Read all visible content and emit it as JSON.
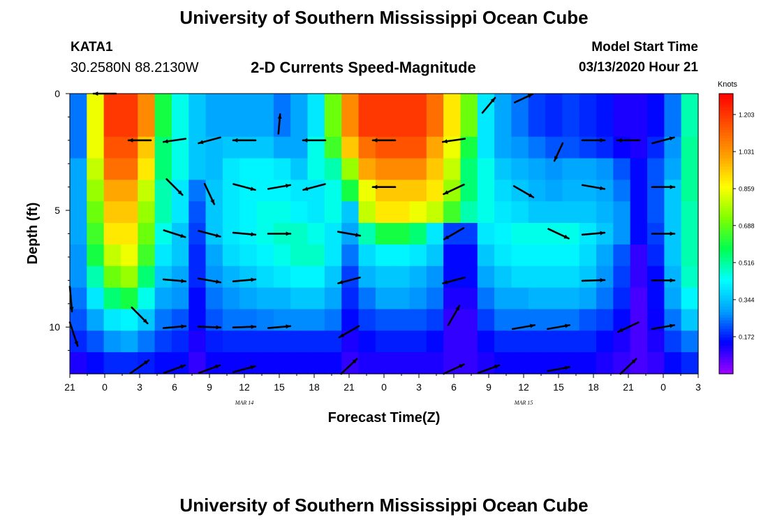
{
  "page": {
    "title": "University of Southern Mississippi Ocean Cube",
    "footer_title": "University of Southern Mississippi Ocean Cube",
    "station": "KATA1",
    "coords": "30.2580N 88.2130W",
    "plot_title": "2-D Currents Speed-Magnitude",
    "model_label": "Model Start Time",
    "model_time": "03/13/2020 Hour 21"
  },
  "chart_data": {
    "type": "heatmap",
    "title": "2-D Currents Speed-Magnitude",
    "xlabel": "Forecast Time(Z)",
    "ylabel": "Depth (ft)",
    "x_hours": [
      0,
      3,
      6,
      9,
      12,
      15,
      18,
      21,
      24,
      27,
      30,
      33,
      36,
      39,
      42,
      45,
      48,
      51,
      54
    ],
    "x_tick_labels": [
      "21",
      "0",
      "3",
      "6",
      "9",
      "12",
      "15",
      "18",
      "21",
      "0",
      "3",
      "6",
      "9",
      "12",
      "15",
      "18",
      "21",
      "0",
      "3"
    ],
    "date_labels": [
      {
        "label": "MAR 14",
        "hour": 15
      },
      {
        "label": "MAR 15",
        "hour": 39
      }
    ],
    "xlim": [
      0,
      54
    ],
    "y_ticks": [
      0,
      5,
      10
    ],
    "ylim": [
      0,
      12
    ],
    "colorbar": {
      "title": "Knots",
      "ticks": [
        1.203,
        1.031,
        0.859,
        0.688,
        0.516,
        0.344,
        0.172
      ],
      "tick_labels": [
        "1.203",
        "1.031",
        "0.859",
        "0.688",
        "0.516",
        "0.344",
        "0.172"
      ],
      "min": 0.0,
      "max": 1.3,
      "colors": [
        "#a000ff",
        "#0000ff",
        "#00a0ff",
        "#00ffff",
        "#00ff50",
        "#80ff00",
        "#ffff00",
        "#ffa000",
        "#ff5000",
        "#ff0000"
      ]
    },
    "speed_knots": [
      [
        0.25,
        0.85,
        1.2,
        1.2,
        1.05,
        0.6,
        0.45,
        0.35,
        0.3,
        0.3,
        0.3,
        0.3,
        0.25,
        0.3,
        0.4,
        0.7,
        1.05,
        1.2,
        1.2,
        1.2,
        1.2,
        1.1,
        0.9,
        0.7,
        0.4,
        0.3,
        0.25,
        0.2,
        0.18,
        0.2,
        0.18,
        0.16,
        0.12,
        0.12,
        0.15,
        0.25,
        0.5
      ],
      [
        0.25,
        0.85,
        1.2,
        1.2,
        1.05,
        0.6,
        0.45,
        0.35,
        0.3,
        0.3,
        0.3,
        0.3,
        0.25,
        0.3,
        0.4,
        0.7,
        1.05,
        1.2,
        1.2,
        1.2,
        1.2,
        1.1,
        0.9,
        0.7,
        0.4,
        0.3,
        0.25,
        0.2,
        0.18,
        0.2,
        0.18,
        0.16,
        0.12,
        0.12,
        0.15,
        0.25,
        0.5
      ],
      [
        0.25,
        0.85,
        1.15,
        1.15,
        0.95,
        0.55,
        0.45,
        0.35,
        0.33,
        0.35,
        0.35,
        0.35,
        0.3,
        0.3,
        0.45,
        0.65,
        0.95,
        1.1,
        1.15,
        1.15,
        1.15,
        1.0,
        0.85,
        0.6,
        0.4,
        0.3,
        0.28,
        0.25,
        0.22,
        0.22,
        0.2,
        0.18,
        0.14,
        0.12,
        0.18,
        0.28,
        0.52
      ],
      [
        0.3,
        0.8,
        1.1,
        1.1,
        0.9,
        0.55,
        0.45,
        0.35,
        0.33,
        0.4,
        0.42,
        0.42,
        0.4,
        0.35,
        0.45,
        0.5,
        0.75,
        1.0,
        1.05,
        1.05,
        1.05,
        0.95,
        0.8,
        0.55,
        0.45,
        0.35,
        0.32,
        0.3,
        0.28,
        0.3,
        0.3,
        0.28,
        0.22,
        0.15,
        0.22,
        0.3,
        0.52
      ],
      [
        0.3,
        0.75,
        1.0,
        1.0,
        0.8,
        0.5,
        0.4,
        0.25,
        0.35,
        0.4,
        0.42,
        0.42,
        0.42,
        0.4,
        0.4,
        0.45,
        0.6,
        0.85,
        0.95,
        0.95,
        0.95,
        0.9,
        0.75,
        0.55,
        0.45,
        0.38,
        0.35,
        0.32,
        0.3,
        0.32,
        0.32,
        0.3,
        0.25,
        0.15,
        0.22,
        0.35,
        0.52
      ],
      [
        0.3,
        0.7,
        0.95,
        0.95,
        0.75,
        0.5,
        0.4,
        0.22,
        0.35,
        0.4,
        0.42,
        0.45,
        0.45,
        0.42,
        0.4,
        0.45,
        0.35,
        0.8,
        0.9,
        0.9,
        0.85,
        0.8,
        0.65,
        0.5,
        0.45,
        0.4,
        0.38,
        0.35,
        0.35,
        0.35,
        0.35,
        0.32,
        0.28,
        0.15,
        0.22,
        0.35,
        0.5
      ],
      [
        0.3,
        0.65,
        0.9,
        0.9,
        0.7,
        0.45,
        0.35,
        0.2,
        0.35,
        0.4,
        0.42,
        0.45,
        0.48,
        0.48,
        0.45,
        0.4,
        0.3,
        0.5,
        0.6,
        0.6,
        0.55,
        0.4,
        0.2,
        0.2,
        0.4,
        0.42,
        0.45,
        0.45,
        0.45,
        0.45,
        0.4,
        0.35,
        0.28,
        0.15,
        0.2,
        0.35,
        0.5
      ],
      [
        0.28,
        0.6,
        0.8,
        0.85,
        0.65,
        0.4,
        0.35,
        0.18,
        0.3,
        0.38,
        0.4,
        0.42,
        0.45,
        0.48,
        0.48,
        0.4,
        0.25,
        0.38,
        0.42,
        0.42,
        0.4,
        0.35,
        0.15,
        0.15,
        0.35,
        0.4,
        0.42,
        0.42,
        0.42,
        0.42,
        0.38,
        0.3,
        0.22,
        0.1,
        0.18,
        0.35,
        0.5
      ],
      [
        0.28,
        0.5,
        0.7,
        0.75,
        0.55,
        0.35,
        0.3,
        0.18,
        0.28,
        0.32,
        0.35,
        0.38,
        0.4,
        0.42,
        0.42,
        0.35,
        0.2,
        0.32,
        0.35,
        0.35,
        0.32,
        0.28,
        0.15,
        0.15,
        0.3,
        0.35,
        0.38,
        0.38,
        0.38,
        0.38,
        0.35,
        0.28,
        0.2,
        0.1,
        0.15,
        0.32,
        0.48
      ],
      [
        0.25,
        0.4,
        0.55,
        0.6,
        0.45,
        0.3,
        0.28,
        0.15,
        0.25,
        0.28,
        0.3,
        0.32,
        0.32,
        0.35,
        0.35,
        0.3,
        0.18,
        0.25,
        0.3,
        0.3,
        0.28,
        0.25,
        0.12,
        0.12,
        0.25,
        0.3,
        0.3,
        0.32,
        0.32,
        0.32,
        0.3,
        0.25,
        0.18,
        0.08,
        0.15,
        0.3,
        0.42
      ],
      [
        0.22,
        0.3,
        0.4,
        0.42,
        0.35,
        0.25,
        0.22,
        0.15,
        0.22,
        0.25,
        0.25,
        0.26,
        0.27,
        0.27,
        0.27,
        0.25,
        0.15,
        0.2,
        0.22,
        0.22,
        0.22,
        0.2,
        0.1,
        0.1,
        0.2,
        0.25,
        0.25,
        0.25,
        0.25,
        0.25,
        0.22,
        0.2,
        0.15,
        0.08,
        0.14,
        0.25,
        0.35
      ],
      [
        0.18,
        0.22,
        0.28,
        0.3,
        0.25,
        0.2,
        0.18,
        0.12,
        0.17,
        0.18,
        0.18,
        0.18,
        0.18,
        0.18,
        0.18,
        0.18,
        0.12,
        0.15,
        0.17,
        0.17,
        0.17,
        0.15,
        0.1,
        0.1,
        0.15,
        0.18,
        0.18,
        0.18,
        0.18,
        0.18,
        0.18,
        0.15,
        0.12,
        0.08,
        0.12,
        0.2,
        0.25
      ],
      [
        0.12,
        0.15,
        0.18,
        0.18,
        0.17,
        0.15,
        0.15,
        0.1,
        0.14,
        0.14,
        0.14,
        0.14,
        0.14,
        0.14,
        0.14,
        0.14,
        0.1,
        0.12,
        0.12,
        0.12,
        0.12,
        0.12,
        0.1,
        0.1,
        0.12,
        0.14,
        0.14,
        0.14,
        0.14,
        0.14,
        0.14,
        0.12,
        0.1,
        0.08,
        0.1,
        0.15,
        0.18
      ]
    ],
    "vectors": [
      {
        "hour": 3,
        "depth": 0,
        "dir_deg": 270,
        "len": 0.8
      },
      {
        "hour": 6,
        "depth": 2,
        "dir_deg": 270,
        "len": 0.8
      },
      {
        "hour": 9,
        "depth": 2,
        "dir_deg": 262,
        "len": 0.8
      },
      {
        "hour": 12,
        "depth": 2,
        "dir_deg": 255,
        "len": 0.8
      },
      {
        "hour": 15,
        "depth": 2,
        "dir_deg": 270,
        "len": 0.8
      },
      {
        "hour": 18,
        "depth": 1.3,
        "dir_deg": 5,
        "len": 0.7
      },
      {
        "hour": 21,
        "depth": 2,
        "dir_deg": 270,
        "len": 0.8
      },
      {
        "hour": 27,
        "depth": 2,
        "dir_deg": 270,
        "len": 0.8
      },
      {
        "hour": 33,
        "depth": 2,
        "dir_deg": 262,
        "len": 0.8
      },
      {
        "hour": 36,
        "depth": 0.5,
        "dir_deg": 40,
        "len": 0.7
      },
      {
        "hour": 39,
        "depth": 0.2,
        "dir_deg": 65,
        "len": 0.7
      },
      {
        "hour": 42,
        "depth": 2.5,
        "dir_deg": 205,
        "len": 0.7
      },
      {
        "hour": 45,
        "depth": 2,
        "dir_deg": 90,
        "len": 0.8
      },
      {
        "hour": 48,
        "depth": 2,
        "dir_deg": 270,
        "len": 0.8
      },
      {
        "hour": 51,
        "depth": 2,
        "dir_deg": 75,
        "len": 0.8
      },
      {
        "hour": 9,
        "depth": 4,
        "dir_deg": 135,
        "len": 0.8
      },
      {
        "hour": 12,
        "depth": 4.3,
        "dir_deg": 155,
        "len": 0.8
      },
      {
        "hour": 15,
        "depth": 4,
        "dir_deg": 105,
        "len": 0.8
      },
      {
        "hour": 18,
        "depth": 4,
        "dir_deg": 80,
        "len": 0.8
      },
      {
        "hour": 21,
        "depth": 4,
        "dir_deg": 255,
        "len": 0.8
      },
      {
        "hour": 27,
        "depth": 4,
        "dir_deg": 270,
        "len": 0.8
      },
      {
        "hour": 33,
        "depth": 4.1,
        "dir_deg": 245,
        "len": 0.8
      },
      {
        "hour": 39,
        "depth": 4.2,
        "dir_deg": 120,
        "len": 0.8
      },
      {
        "hour": 45,
        "depth": 4,
        "dir_deg": 100,
        "len": 0.8
      },
      {
        "hour": 51,
        "depth": 4,
        "dir_deg": 90,
        "len": 0.8
      },
      {
        "hour": 9,
        "depth": 6,
        "dir_deg": 108,
        "len": 0.8
      },
      {
        "hour": 12,
        "depth": 6,
        "dir_deg": 105,
        "len": 0.8
      },
      {
        "hour": 15,
        "depth": 6,
        "dir_deg": 95,
        "len": 0.8
      },
      {
        "hour": 18,
        "depth": 6,
        "dir_deg": 90,
        "len": 0.8
      },
      {
        "hour": 24,
        "depth": 6,
        "dir_deg": 100,
        "len": 0.8
      },
      {
        "hour": 33,
        "depth": 6,
        "dir_deg": 240,
        "len": 0.8
      },
      {
        "hour": 42,
        "depth": 6,
        "dir_deg": 115,
        "len": 0.8
      },
      {
        "hour": 45,
        "depth": 6,
        "dir_deg": 85,
        "len": 0.8
      },
      {
        "hour": 51,
        "depth": 6,
        "dir_deg": 90,
        "len": 0.8
      },
      {
        "hour": 0,
        "depth": 8.8,
        "dir_deg": 170,
        "len": 0.9
      },
      {
        "hour": 9,
        "depth": 8,
        "dir_deg": 95,
        "len": 0.8
      },
      {
        "hour": 12,
        "depth": 8,
        "dir_deg": 100,
        "len": 0.8
      },
      {
        "hour": 15,
        "depth": 8,
        "dir_deg": 85,
        "len": 0.8
      },
      {
        "hour": 24,
        "depth": 8,
        "dir_deg": 255,
        "len": 0.8
      },
      {
        "hour": 33,
        "depth": 8,
        "dir_deg": 255,
        "len": 0.8
      },
      {
        "hour": 45,
        "depth": 8,
        "dir_deg": 88,
        "len": 0.8
      },
      {
        "hour": 51,
        "depth": 8,
        "dir_deg": 90,
        "len": 0.8
      },
      {
        "hour": 6,
        "depth": 9.5,
        "dir_deg": 135,
        "len": 0.8
      },
      {
        "hour": 9,
        "depth": 10,
        "dir_deg": 85,
        "len": 0.8
      },
      {
        "hour": 12,
        "depth": 10,
        "dir_deg": 92,
        "len": 0.8
      },
      {
        "hour": 15,
        "depth": 10,
        "dir_deg": 88,
        "len": 0.8
      },
      {
        "hour": 18,
        "depth": 10,
        "dir_deg": 85,
        "len": 0.8
      },
      {
        "hour": 24,
        "depth": 10.2,
        "dir_deg": 240,
        "len": 0.8
      },
      {
        "hour": 33,
        "depth": 9.5,
        "dir_deg": 30,
        "len": 0.8
      },
      {
        "hour": 39,
        "depth": 10,
        "dir_deg": 80,
        "len": 0.8
      },
      {
        "hour": 42,
        "depth": 10,
        "dir_deg": 80,
        "len": 0.8
      },
      {
        "hour": 48,
        "depth": 10,
        "dir_deg": 245,
        "len": 0.8
      },
      {
        "hour": 51,
        "depth": 10,
        "dir_deg": 80,
        "len": 0.8
      },
      {
        "hour": 0.3,
        "depth": 10.3,
        "dir_deg": 160,
        "len": 0.9
      },
      {
        "hour": 6,
        "depth": 11.7,
        "dir_deg": 55,
        "len": 0.8
      },
      {
        "hour": 9,
        "depth": 11.8,
        "dir_deg": 70,
        "len": 0.8
      },
      {
        "hour": 12,
        "depth": 11.8,
        "dir_deg": 70,
        "len": 0.8
      },
      {
        "hour": 15,
        "depth": 11.8,
        "dir_deg": 75,
        "len": 0.8
      },
      {
        "hour": 24,
        "depth": 11.7,
        "dir_deg": 45,
        "len": 0.8
      },
      {
        "hour": 33,
        "depth": 11.8,
        "dir_deg": 65,
        "len": 0.8
      },
      {
        "hour": 36,
        "depth": 11.8,
        "dir_deg": 70,
        "len": 0.8
      },
      {
        "hour": 42,
        "depth": 11.8,
        "dir_deg": 80,
        "len": 0.8
      },
      {
        "hour": 48,
        "depth": 11.7,
        "dir_deg": 45,
        "len": 0.8
      }
    ]
  }
}
